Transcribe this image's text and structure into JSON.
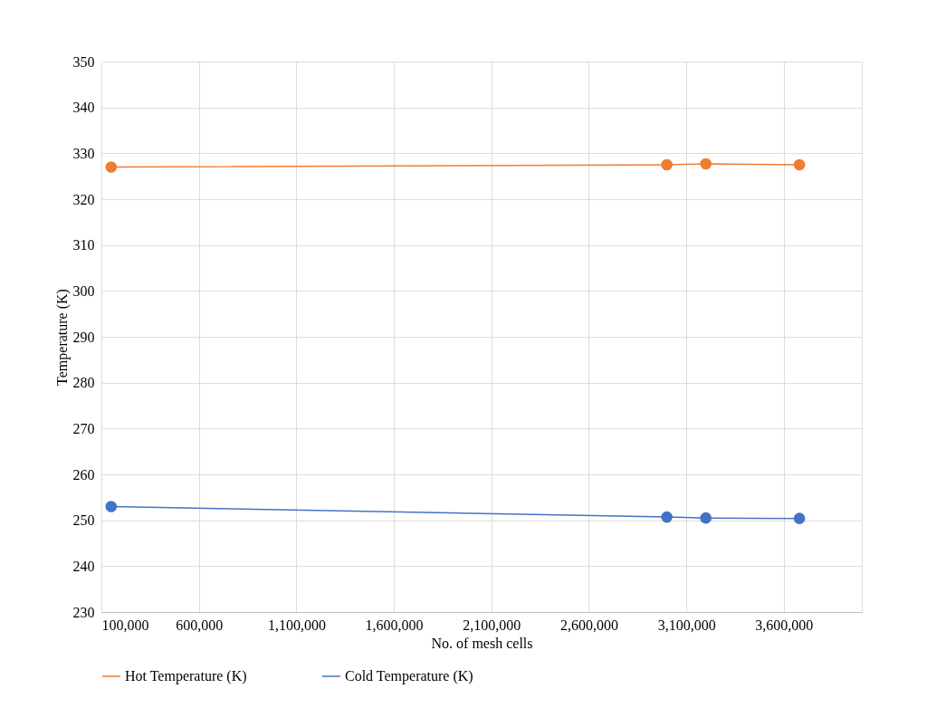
{
  "chart_data": {
    "type": "line",
    "xlabel": "No. of mesh cells",
    "ylabel": "Temperature (K)",
    "x": [
      150000,
      3000000,
      3200000,
      3680000
    ],
    "series": [
      {
        "name": "Hot Temperature (K)",
        "color": "#ed7d31",
        "values": [
          327.0,
          327.5,
          327.7,
          327.5
        ]
      },
      {
        "name": "Cold Temperature (K)",
        "color": "#4472c4",
        "values": [
          253.0,
          250.7,
          250.5,
          250.4
        ]
      }
    ],
    "xlim": [
      100000,
      4000000
    ],
    "xticks": [
      {
        "value": 100000,
        "label": "100,000"
      },
      {
        "value": 600000,
        "label": "600,000"
      },
      {
        "value": 1100000,
        "label": "1,100,000"
      },
      {
        "value": 1600000,
        "label": "1,600,000"
      },
      {
        "value": 2100000,
        "label": "2,100,000"
      },
      {
        "value": 2600000,
        "label": "2,600,000"
      },
      {
        "value": 3100000,
        "label": "3,100,000"
      },
      {
        "value": 3600000,
        "label": "3,600,000"
      }
    ],
    "ylim": [
      230,
      350
    ],
    "yticks": [
      230,
      240,
      250,
      260,
      270,
      280,
      290,
      300,
      310,
      320,
      330,
      340,
      350
    ],
    "grid": true,
    "legend": "bottom",
    "marker": "circle",
    "line_style": "solid"
  }
}
